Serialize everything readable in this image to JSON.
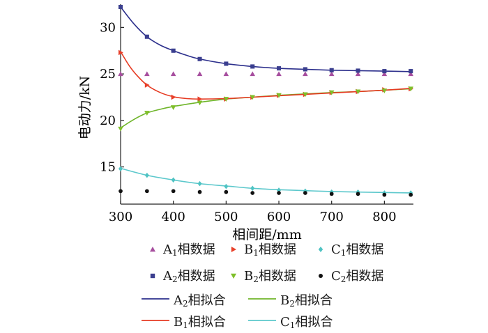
{
  "chart_data": {
    "type": "line",
    "xlabel": "相间距/mm",
    "ylabel": "电动力/kN",
    "xlim": [
      300,
      855
    ],
    "ylim": [
      11,
      32.5
    ],
    "xticks": [
      300,
      400,
      500,
      600,
      700,
      800
    ],
    "yticks": [
      15,
      20,
      25,
      30
    ],
    "axes": "left-bottom",
    "grid": false,
    "legend_position": "bottom",
    "x": [
      300,
      350,
      400,
      450,
      500,
      550,
      600,
      650,
      700,
      750,
      800,
      850
    ],
    "data_series": [
      {
        "name": "A1相数据",
        "base": "A",
        "sub": "1",
        "suffix": "相数据",
        "marker": "triangle-up",
        "color": "#a64d9e",
        "values": [
          25.0,
          25.0,
          25.0,
          25.0,
          25.0,
          25.0,
          25.0,
          25.0,
          25.0,
          25.0,
          25.0,
          25.0
        ]
      },
      {
        "name": "B1相数据",
        "base": "B",
        "sub": "1",
        "suffix": "相数据",
        "marker": "triangle-right",
        "color": "#e8402a",
        "values": [
          27.3,
          23.8,
          22.5,
          22.3,
          22.3,
          22.5,
          22.7,
          22.8,
          23.0,
          23.1,
          23.3,
          23.4
        ]
      },
      {
        "name": "C1相数据",
        "base": "C",
        "sub": "1",
        "suffix": "相数据",
        "marker": "diamond",
        "color": "#4fc3c3",
        "values": [
          14.8,
          14.1,
          13.6,
          13.2,
          12.9,
          12.7,
          12.5,
          12.4,
          12.3,
          12.3,
          12.2,
          12.2
        ]
      },
      {
        "name": "A2相数据",
        "base": "A",
        "sub": "2",
        "suffix": "相数据",
        "marker": "square",
        "color": "#3b3f8f",
        "values": [
          32.2,
          29.0,
          27.5,
          26.6,
          26.1,
          25.8,
          25.6,
          25.5,
          25.4,
          25.35,
          25.3,
          25.3
        ]
      },
      {
        "name": "B2相数据",
        "base": "B",
        "sub": "2",
        "suffix": "相数据",
        "marker": "triangle-down",
        "color": "#7fbf2a",
        "values": [
          19.1,
          20.8,
          21.4,
          21.9,
          22.3,
          22.5,
          22.7,
          22.8,
          23.0,
          23.1,
          23.2,
          23.4
        ]
      },
      {
        "name": "C2相数据",
        "base": "C",
        "sub": "2",
        "suffix": "相数据",
        "marker": "circle",
        "color": "#111111",
        "values": [
          12.4,
          12.4,
          12.4,
          12.3,
          12.3,
          12.2,
          12.2,
          12.2,
          12.1,
          12.1,
          12.0,
          12.0
        ]
      }
    ],
    "fit_series": [
      {
        "name": "A2相拟合",
        "base": "A",
        "sub": "2",
        "suffix": "相拟合",
        "color": "#2c2f8c",
        "x": [
          300,
          325,
          350,
          375,
          400,
          425,
          450,
          500,
          550,
          600,
          650,
          700,
          750,
          800,
          850
        ],
        "values": [
          32.2,
          30.4,
          29.0,
          28.1,
          27.5,
          27.0,
          26.6,
          26.1,
          25.8,
          25.6,
          25.5,
          25.4,
          25.35,
          25.3,
          25.25
        ]
      },
      {
        "name": "B2相拟合",
        "base": "B",
        "sub": "2",
        "suffix": "相拟合",
        "color": "#6fb52a",
        "x": [
          300,
          325,
          350,
          375,
          400,
          450,
          500,
          550,
          600,
          650,
          700,
          750,
          800,
          850
        ],
        "values": [
          19.2,
          20.1,
          20.8,
          21.2,
          21.5,
          21.95,
          22.3,
          22.5,
          22.7,
          22.85,
          23.0,
          23.1,
          23.25,
          23.4
        ]
      },
      {
        "name": "B1相拟合",
        "base": "B",
        "sub": "1",
        "suffix": "相拟合",
        "color": "#e63a22",
        "x": [
          300,
          315,
          330,
          350,
          375,
          400,
          425,
          450,
          500,
          550,
          600,
          650,
          700,
          750,
          800,
          850
        ],
        "values": [
          27.4,
          26.0,
          24.9,
          23.8,
          23.0,
          22.55,
          22.35,
          22.3,
          22.35,
          22.5,
          22.65,
          22.8,
          22.95,
          23.1,
          23.25,
          23.45
        ]
      },
      {
        "name": "C1相拟合",
        "base": "C",
        "sub": "1",
        "suffix": "相拟合",
        "color": "#5cc8cc",
        "x": [
          300,
          350,
          400,
          450,
          500,
          550,
          600,
          650,
          700,
          750,
          800,
          850
        ],
        "values": [
          14.85,
          14.1,
          13.6,
          13.2,
          12.95,
          12.7,
          12.55,
          12.45,
          12.35,
          12.3,
          12.25,
          12.2
        ]
      }
    ]
  }
}
